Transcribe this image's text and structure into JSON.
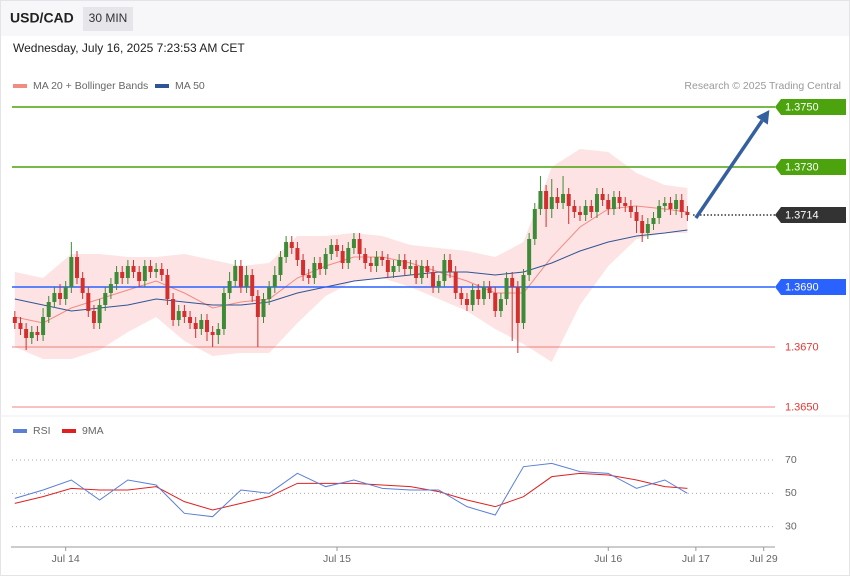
{
  "chart_data": {
    "type": "candlestick",
    "title": "USD/CAD",
    "timeframe": "30 MIN",
    "subtitle": "Wednesday, July 16, 2025 7:23:53 AM CET",
    "source": "Research © 2025 Trading Central",
    "up_color": "#3d8b37",
    "down_color": "#d32f2f",
    "candles": [
      [
        1.368,
        1.3682,
        1.3676,
        1.3678
      ],
      [
        1.3678,
        1.368,
        1.3674,
        1.3676
      ],
      [
        1.3676,
        1.3678,
        1.3669,
        1.3673
      ],
      [
        1.3673,
        1.3677,
        1.3671,
        1.3675
      ],
      [
        1.3675,
        1.3677,
        1.3672,
        1.3674
      ],
      [
        1.3674,
        1.3683,
        1.3672,
        1.368
      ],
      [
        1.368,
        1.3687,
        1.3678,
        1.3685
      ],
      [
        1.3685,
        1.369,
        1.3683,
        1.3688
      ],
      [
        1.3688,
        1.3691,
        1.3684,
        1.3686
      ],
      [
        1.3686,
        1.3692,
        1.3684,
        1.369
      ],
      [
        1.369,
        1.3705,
        1.3688,
        1.37
      ],
      [
        1.37,
        1.3702,
        1.3691,
        1.3693
      ],
      [
        1.3693,
        1.3695,
        1.3686,
        1.3688
      ],
      [
        1.3688,
        1.369,
        1.368,
        1.3682
      ],
      [
        1.3682,
        1.3684,
        1.3676,
        1.3678
      ],
      [
        1.3678,
        1.3686,
        1.3676,
        1.3684
      ],
      [
        1.3684,
        1.369,
        1.3682,
        1.3688
      ],
      [
        1.3688,
        1.3693,
        1.3686,
        1.3691
      ],
      [
        1.3691,
        1.3697,
        1.3689,
        1.3695
      ],
      [
        1.3695,
        1.3697,
        1.3691,
        1.3693
      ],
      [
        1.3693,
        1.3699,
        1.3691,
        1.3697
      ],
      [
        1.3697,
        1.3699,
        1.3693,
        1.3695
      ],
      [
        1.3695,
        1.3697,
        1.369,
        1.3692
      ],
      [
        1.3692,
        1.3699,
        1.369,
        1.3697
      ],
      [
        1.3697,
        1.3699,
        1.3693,
        1.3695
      ],
      [
        1.3695,
        1.3698,
        1.3693,
        1.3696
      ],
      [
        1.3696,
        1.3698,
        1.3692,
        1.3694
      ],
      [
        1.3694,
        1.3696,
        1.3684,
        1.3686
      ],
      [
        1.3686,
        1.3688,
        1.3677,
        1.3679
      ],
      [
        1.3679,
        1.3684,
        1.3677,
        1.3682
      ],
      [
        1.3682,
        1.3684,
        1.3678,
        1.368
      ],
      [
        1.368,
        1.3682,
        1.3676,
        1.3678
      ],
      [
        1.3678,
        1.368,
        1.3673,
        1.3676
      ],
      [
        1.3676,
        1.3681,
        1.3674,
        1.3679
      ],
      [
        1.3679,
        1.3681,
        1.3672,
        1.3675
      ],
      [
        1.3675,
        1.3677,
        1.367,
        1.3674
      ],
      [
        1.3674,
        1.3678,
        1.3671,
        1.3676
      ],
      [
        1.3676,
        1.369,
        1.3674,
        1.3688
      ],
      [
        1.3688,
        1.3695,
        1.3686,
        1.3692
      ],
      [
        1.3692,
        1.3699,
        1.369,
        1.3697
      ],
      [
        1.3697,
        1.3699,
        1.3688,
        1.369
      ],
      [
        1.369,
        1.3697,
        1.3688,
        1.3694
      ],
      [
        1.3694,
        1.3696,
        1.3685,
        1.3687
      ],
      [
        1.3687,
        1.3689,
        1.367,
        1.368
      ],
      [
        1.368,
        1.3688,
        1.3678,
        1.3686
      ],
      [
        1.3686,
        1.3692,
        1.3684,
        1.369
      ],
      [
        1.369,
        1.3697,
        1.3688,
        1.3694
      ],
      [
        1.3694,
        1.3702,
        1.3692,
        1.37
      ],
      [
        1.37,
        1.3707,
        1.3698,
        1.3705
      ],
      [
        1.3705,
        1.3707,
        1.3701,
        1.3703
      ],
      [
        1.3703,
        1.3705,
        1.3697,
        1.3699
      ],
      [
        1.3699,
        1.3701,
        1.3692,
        1.3694
      ],
      [
        1.3694,
        1.3696,
        1.3691,
        1.3693
      ],
      [
        1.3693,
        1.37,
        1.3691,
        1.3698
      ],
      [
        1.3698,
        1.37,
        1.3694,
        1.3696
      ],
      [
        1.3696,
        1.3703,
        1.3694,
        1.3701
      ],
      [
        1.3701,
        1.3706,
        1.3699,
        1.3704
      ],
      [
        1.3704,
        1.3706,
        1.37,
        1.3702
      ],
      [
        1.3702,
        1.3704,
        1.3696,
        1.3698
      ],
      [
        1.3698,
        1.3705,
        1.3696,
        1.3703
      ],
      [
        1.3703,
        1.3708,
        1.3701,
        1.3706
      ],
      [
        1.3706,
        1.3708,
        1.3699,
        1.3701
      ],
      [
        1.3701,
        1.3703,
        1.3696,
        1.3698
      ],
      [
        1.3698,
        1.37,
        1.3695,
        1.3697
      ],
      [
        1.3697,
        1.3702,
        1.3695,
        1.37
      ],
      [
        1.37,
        1.3702,
        1.3697,
        1.3699
      ],
      [
        1.3699,
        1.3701,
        1.3693,
        1.3695
      ],
      [
        1.3695,
        1.3699,
        1.3693,
        1.3697
      ],
      [
        1.3697,
        1.3701,
        1.3695,
        1.3699
      ],
      [
        1.3699,
        1.3701,
        1.3694,
        1.3696
      ],
      [
        1.3696,
        1.3699,
        1.3694,
        1.3697
      ],
      [
        1.3697,
        1.3699,
        1.3691,
        1.3693
      ],
      [
        1.3693,
        1.3699,
        1.3691,
        1.3697
      ],
      [
        1.3697,
        1.3699,
        1.3693,
        1.3695
      ],
      [
        1.3695,
        1.3697,
        1.3688,
        1.369
      ],
      [
        1.369,
        1.3694,
        1.3688,
        1.3692
      ],
      [
        1.3692,
        1.3701,
        1.369,
        1.3699
      ],
      [
        1.3699,
        1.3701,
        1.3693,
        1.3695
      ],
      [
        1.3695,
        1.3697,
        1.3686,
        1.3688
      ],
      [
        1.3688,
        1.369,
        1.3684,
        1.3686
      ],
      [
        1.3686,
        1.3688,
        1.3682,
        1.3684
      ],
      [
        1.3684,
        1.3691,
        1.3682,
        1.3689
      ],
      [
        1.3689,
        1.3691,
        1.3684,
        1.3686
      ],
      [
        1.3686,
        1.3692,
        1.3684,
        1.369
      ],
      [
        1.369,
        1.3692,
        1.3686,
        1.3688
      ],
      [
        1.3688,
        1.369,
        1.368,
        1.3682
      ],
      [
        1.3682,
        1.3688,
        1.368,
        1.3686
      ],
      [
        1.3686,
        1.3695,
        1.3684,
        1.3693
      ],
      [
        1.3693,
        1.3695,
        1.3672,
        1.369
      ],
      [
        1.369,
        1.3692,
        1.3668,
        1.3678
      ],
      [
        1.3678,
        1.3696,
        1.3676,
        1.3694
      ],
      [
        1.3694,
        1.3708,
        1.3692,
        1.3706
      ],
      [
        1.3706,
        1.3718,
        1.3704,
        1.3716
      ],
      [
        1.3716,
        1.3727,
        1.3714,
        1.3722
      ],
      [
        1.3722,
        1.3724,
        1.371,
        1.3716
      ],
      [
        1.3716,
        1.3726,
        1.3713,
        1.372
      ],
      [
        1.372,
        1.3723,
        1.3716,
        1.3718
      ],
      [
        1.3718,
        1.3727,
        1.3716,
        1.3721
      ],
      [
        1.3721,
        1.3723,
        1.3711,
        1.3717
      ],
      [
        1.3717,
        1.3719,
        1.3713,
        1.3715
      ],
      [
        1.3715,
        1.3717,
        1.3712,
        1.3714
      ],
      [
        1.3714,
        1.3719,
        1.3712,
        1.3717
      ],
      [
        1.3717,
        1.3719,
        1.3713,
        1.3715
      ],
      [
        1.3715,
        1.3723,
        1.3713,
        1.3721
      ],
      [
        1.3721,
        1.3723,
        1.3717,
        1.3719
      ],
      [
        1.3719,
        1.3721,
        1.3714,
        1.3716
      ],
      [
        1.3716,
        1.3722,
        1.3714,
        1.372
      ],
      [
        1.372,
        1.3722,
        1.3716,
        1.3718
      ],
      [
        1.3718,
        1.372,
        1.3715,
        1.3717
      ],
      [
        1.3717,
        1.3719,
        1.3713,
        1.3715
      ],
      [
        1.3715,
        1.3717,
        1.3708,
        1.3712
      ],
      [
        1.3712,
        1.3714,
        1.3705,
        1.3708
      ],
      [
        1.3708,
        1.3713,
        1.3706,
        1.3711
      ],
      [
        1.3711,
        1.3715,
        1.3709,
        1.3713
      ],
      [
        1.3713,
        1.3719,
        1.3711,
        1.3717
      ],
      [
        1.3717,
        1.372,
        1.3715,
        1.3718
      ],
      [
        1.3718,
        1.372,
        1.3714,
        1.3716
      ],
      [
        1.3716,
        1.3721,
        1.3714,
        1.3719
      ],
      [
        1.3719,
        1.3721,
        1.3713,
        1.3715
      ],
      [
        1.3715,
        1.3717,
        1.3712,
        1.3714
      ]
    ],
    "xlim": [
      -0.5,
      134.5
    ],
    "xticks": [
      {
        "value": 9,
        "label": "Jul 14"
      },
      {
        "value": 57,
        "label": "Jul 15"
      },
      {
        "value": 105,
        "label": "Jul 16"
      },
      {
        "value": 120.5,
        "label": "Jul 17"
      },
      {
        "value": 132.5,
        "label": "Jul 29"
      }
    ],
    "ylim": [
      1.3648,
      1.3753
    ],
    "bands": {
      "name": "MA 20 + Bollinger Bands",
      "color": "#f28b82",
      "fill": "#fde3e3",
      "x": [
        0,
        5,
        10,
        15,
        20,
        25,
        30,
        35,
        40,
        45,
        50,
        55,
        60,
        65,
        70,
        75,
        80,
        85,
        90,
        95,
        100,
        105,
        110,
        115,
        119
      ],
      "middle": [
        1.368,
        1.3678,
        1.3683,
        1.3686,
        1.3689,
        1.3692,
        1.3688,
        1.3683,
        1.3685,
        1.3686,
        1.3693,
        1.3697,
        1.37,
        1.37,
        1.3698,
        1.3695,
        1.3692,
        1.3688,
        1.3688,
        1.37,
        1.371,
        1.3716,
        1.3717,
        1.3716,
        1.3715
      ],
      "upper": [
        1.3695,
        1.3693,
        1.3701,
        1.3701,
        1.37,
        1.37,
        1.3701,
        1.3699,
        1.3697,
        1.3698,
        1.3707,
        1.3707,
        1.3708,
        1.3707,
        1.3704,
        1.3703,
        1.3702,
        1.37,
        1.3705,
        1.373,
        1.3736,
        1.3735,
        1.3728,
        1.3724,
        1.3723
      ],
      "lower": [
        1.367,
        1.3666,
        1.3666,
        1.3669,
        1.3675,
        1.368,
        1.3672,
        1.3667,
        1.3668,
        1.3668,
        1.3678,
        1.3687,
        1.3692,
        1.3693,
        1.369,
        1.3686,
        1.3682,
        1.3676,
        1.3671,
        1.3665,
        1.3684,
        1.3697,
        1.3706,
        1.3708,
        1.3708
      ]
    },
    "ma50": {
      "name": "MA 50",
      "color": "#2f5597",
      "x": [
        0,
        5,
        10,
        15,
        20,
        25,
        30,
        35,
        40,
        45,
        50,
        55,
        60,
        65,
        70,
        75,
        80,
        85,
        90,
        95,
        100,
        105,
        110,
        115,
        119
      ],
      "values": [
        1.3686,
        1.3684,
        1.3682,
        1.3683,
        1.3684,
        1.3686,
        1.3685,
        1.3684,
        1.3684,
        1.3685,
        1.3688,
        1.369,
        1.3692,
        1.3693,
        1.3694,
        1.3695,
        1.3695,
        1.3694,
        1.3695,
        1.3698,
        1.3702,
        1.3705,
        1.3707,
        1.3708,
        1.3709
      ]
    },
    "levels": [
      {
        "value": 1.375,
        "label": "1.3750",
        "color": "#4ca30d",
        "style": "box"
      },
      {
        "value": 1.373,
        "label": "1.3730",
        "color": "#4ca30d",
        "style": "box"
      },
      {
        "value": 1.3714,
        "label": "1.3714",
        "color": "#333333",
        "style": "current"
      },
      {
        "value": 1.369,
        "label": "1.3690",
        "color": "#2962ff",
        "style": "box"
      },
      {
        "value": 1.367,
        "label": "1.3670",
        "color": "#e53935",
        "style": "text"
      },
      {
        "value": 1.365,
        "label": "1.3650",
        "color": "#e53935",
        "style": "text"
      }
    ],
    "arrow": {
      "color": "#3560a0",
      "x": [
        120.5,
        133.5
      ],
      "y": [
        1.3713,
        1.3749
      ]
    },
    "rsi": {
      "ylim": [
        19,
        82
      ],
      "yticks": [
        30,
        50,
        70
      ],
      "series": [
        {
          "name": "RSI",
          "color": "#5b7fd6",
          "x": [
            0,
            5,
            10,
            15,
            20,
            25,
            30,
            35,
            40,
            45,
            50,
            55,
            60,
            65,
            70,
            75,
            80,
            85,
            90,
            95,
            100,
            105,
            110,
            115,
            119
          ],
          "values": [
            47,
            52,
            58,
            46,
            58,
            55,
            38,
            36,
            52,
            50,
            62,
            54,
            58,
            53,
            52,
            52,
            42,
            37,
            66,
            68,
            63,
            62,
            53,
            58,
            50
          ]
        },
        {
          "name": "9MA",
          "color": "#e02020",
          "x": [
            0,
            5,
            10,
            15,
            20,
            25,
            30,
            35,
            40,
            45,
            50,
            55,
            60,
            65,
            70,
            75,
            80,
            85,
            90,
            95,
            100,
            105,
            110,
            115,
            119
          ],
          "values": [
            44,
            48,
            53,
            52,
            52,
            54,
            45,
            40,
            44,
            48,
            56,
            56,
            56,
            55,
            54,
            51,
            46,
            42,
            48,
            60,
            62,
            61,
            58,
            54,
            53
          ]
        }
      ]
    }
  }
}
